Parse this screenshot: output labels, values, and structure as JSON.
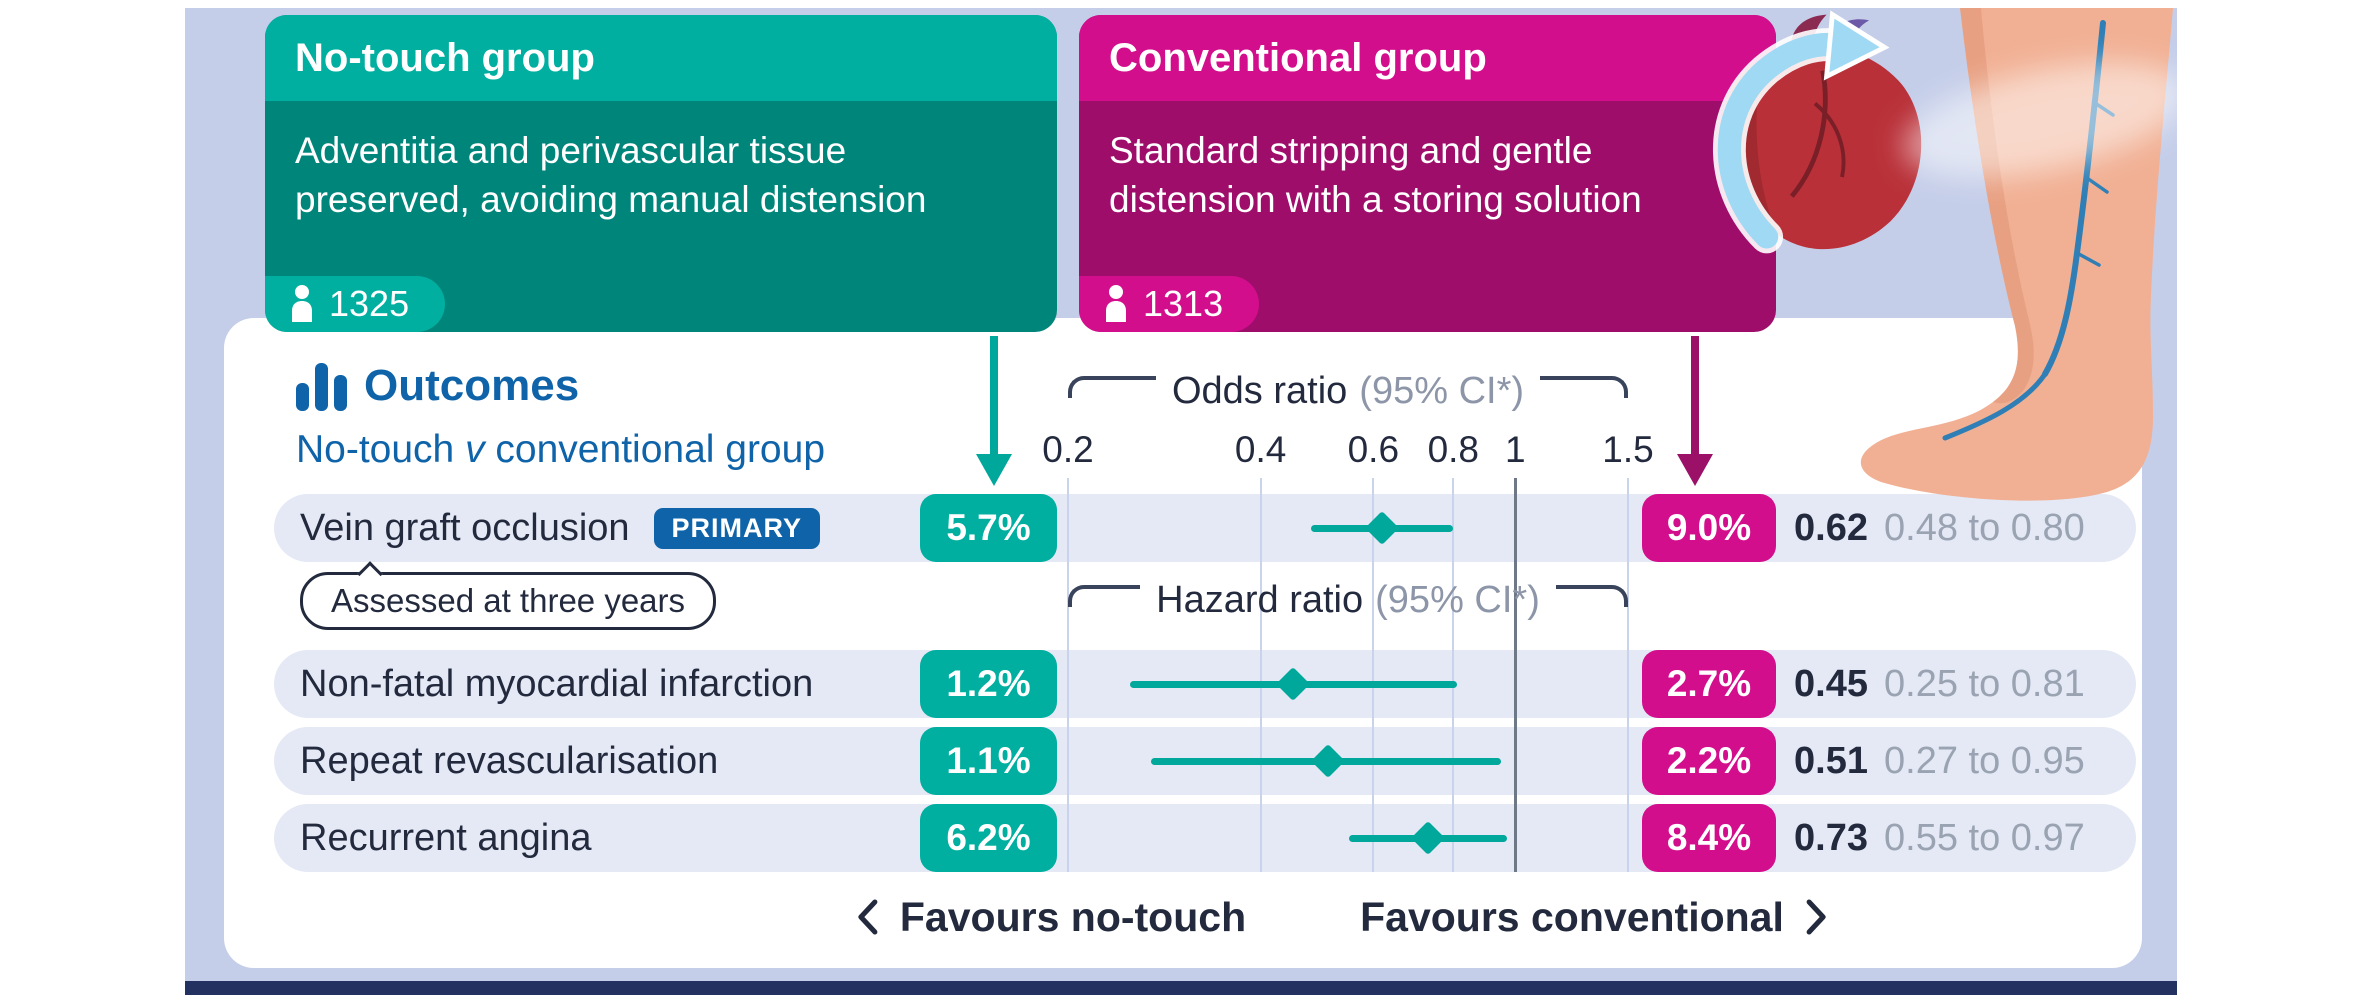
{
  "groups": {
    "no_touch": {
      "title": "No-touch group",
      "description": "Adventitia and perivascular tissue preserved, avoiding manual distension",
      "participants": "1325"
    },
    "conventional": {
      "title": "Conventional group",
      "description": "Standard stripping and gentle distension with a storing solution",
      "participants": "1313"
    }
  },
  "outcomes_panel": {
    "title": "Outcomes",
    "subtitle_prefix": "No-touch ",
    "subtitle_v": "v",
    "subtitle_suffix": " conventional group",
    "odds_label": "Odds ratio",
    "hazard_label": "Hazard ratio",
    "ci_note": "(95% CI*)",
    "favours_left": "Favours no-touch",
    "favours_right": "Favours conventional"
  },
  "rows": [
    {
      "outcome": "Vein graft occlusion",
      "badge": "PRIMARY",
      "note": "Assessed at three years",
      "no_touch_pct": "5.7%",
      "conventional_pct": "9.0%",
      "estimate_label": "0.62",
      "ci_label": "0.48 to 0.80"
    },
    {
      "outcome": "Non-fatal myocardial infarction",
      "no_touch_pct": "1.2%",
      "conventional_pct": "2.7%",
      "estimate_label": "0.45",
      "ci_label": "0.25 to 0.81"
    },
    {
      "outcome": "Repeat revascularisation",
      "no_touch_pct": "1.1%",
      "conventional_pct": "2.2%",
      "estimate_label": "0.51",
      "ci_label": "0.27 to 0.95"
    },
    {
      "outcome": "Recurrent angina",
      "no_touch_pct": "6.2%",
      "conventional_pct": "8.4%",
      "estimate_label": "0.73",
      "ci_label": "0.55 to 0.97"
    }
  ],
  "chart_data": {
    "type": "forest",
    "x_scale": "log",
    "x_range": [
      0.2,
      1.5
    ],
    "x_ticks": [
      0.2,
      0.4,
      0.6,
      0.8,
      1,
      1.5
    ],
    "reference_line": 1,
    "legend": "No-touch v conventional group",
    "sections": [
      {
        "measure": "Odds ratio (95% CI*)",
        "rows": [
          {
            "outcome": "Vein graft occlusion",
            "note": "Assessed at three years",
            "no_touch_pct": 5.7,
            "conventional_pct": 9.0,
            "estimate": 0.62,
            "ci": [
              0.48,
              0.8
            ]
          }
        ]
      },
      {
        "measure": "Hazard ratio (95% CI*)",
        "rows": [
          {
            "outcome": "Non-fatal myocardial infarction",
            "no_touch_pct": 1.2,
            "conventional_pct": 2.7,
            "estimate": 0.45,
            "ci": [
              0.25,
              0.81
            ]
          },
          {
            "outcome": "Repeat revascularisation",
            "no_touch_pct": 1.1,
            "conventional_pct": 2.2,
            "estimate": 0.51,
            "ci": [
              0.27,
              0.95
            ]
          },
          {
            "outcome": "Recurrent angina",
            "no_touch_pct": 6.2,
            "conventional_pct": 8.4,
            "estimate": 0.73,
            "ci": [
              0.55,
              0.97
            ]
          }
        ]
      }
    ],
    "footer": {
      "left": "Favours no-touch",
      "right": "Favours conventional"
    }
  },
  "colors": {
    "teal": "#00AFA0",
    "teal_dark": "#00857B",
    "ci_teal": "#00A79B",
    "magenta": "#D30E8C",
    "magenta_dark": "#9F0D6B",
    "magenta_arrow": "#9B1168",
    "accent_blue": "#0E63A9",
    "panel_bg": "#C5CEE9",
    "navy_bar": "#22315F",
    "row_bg": "#E4E9F5",
    "text_dark": "#232A3E",
    "text_gray": "#9AA3B2"
  }
}
